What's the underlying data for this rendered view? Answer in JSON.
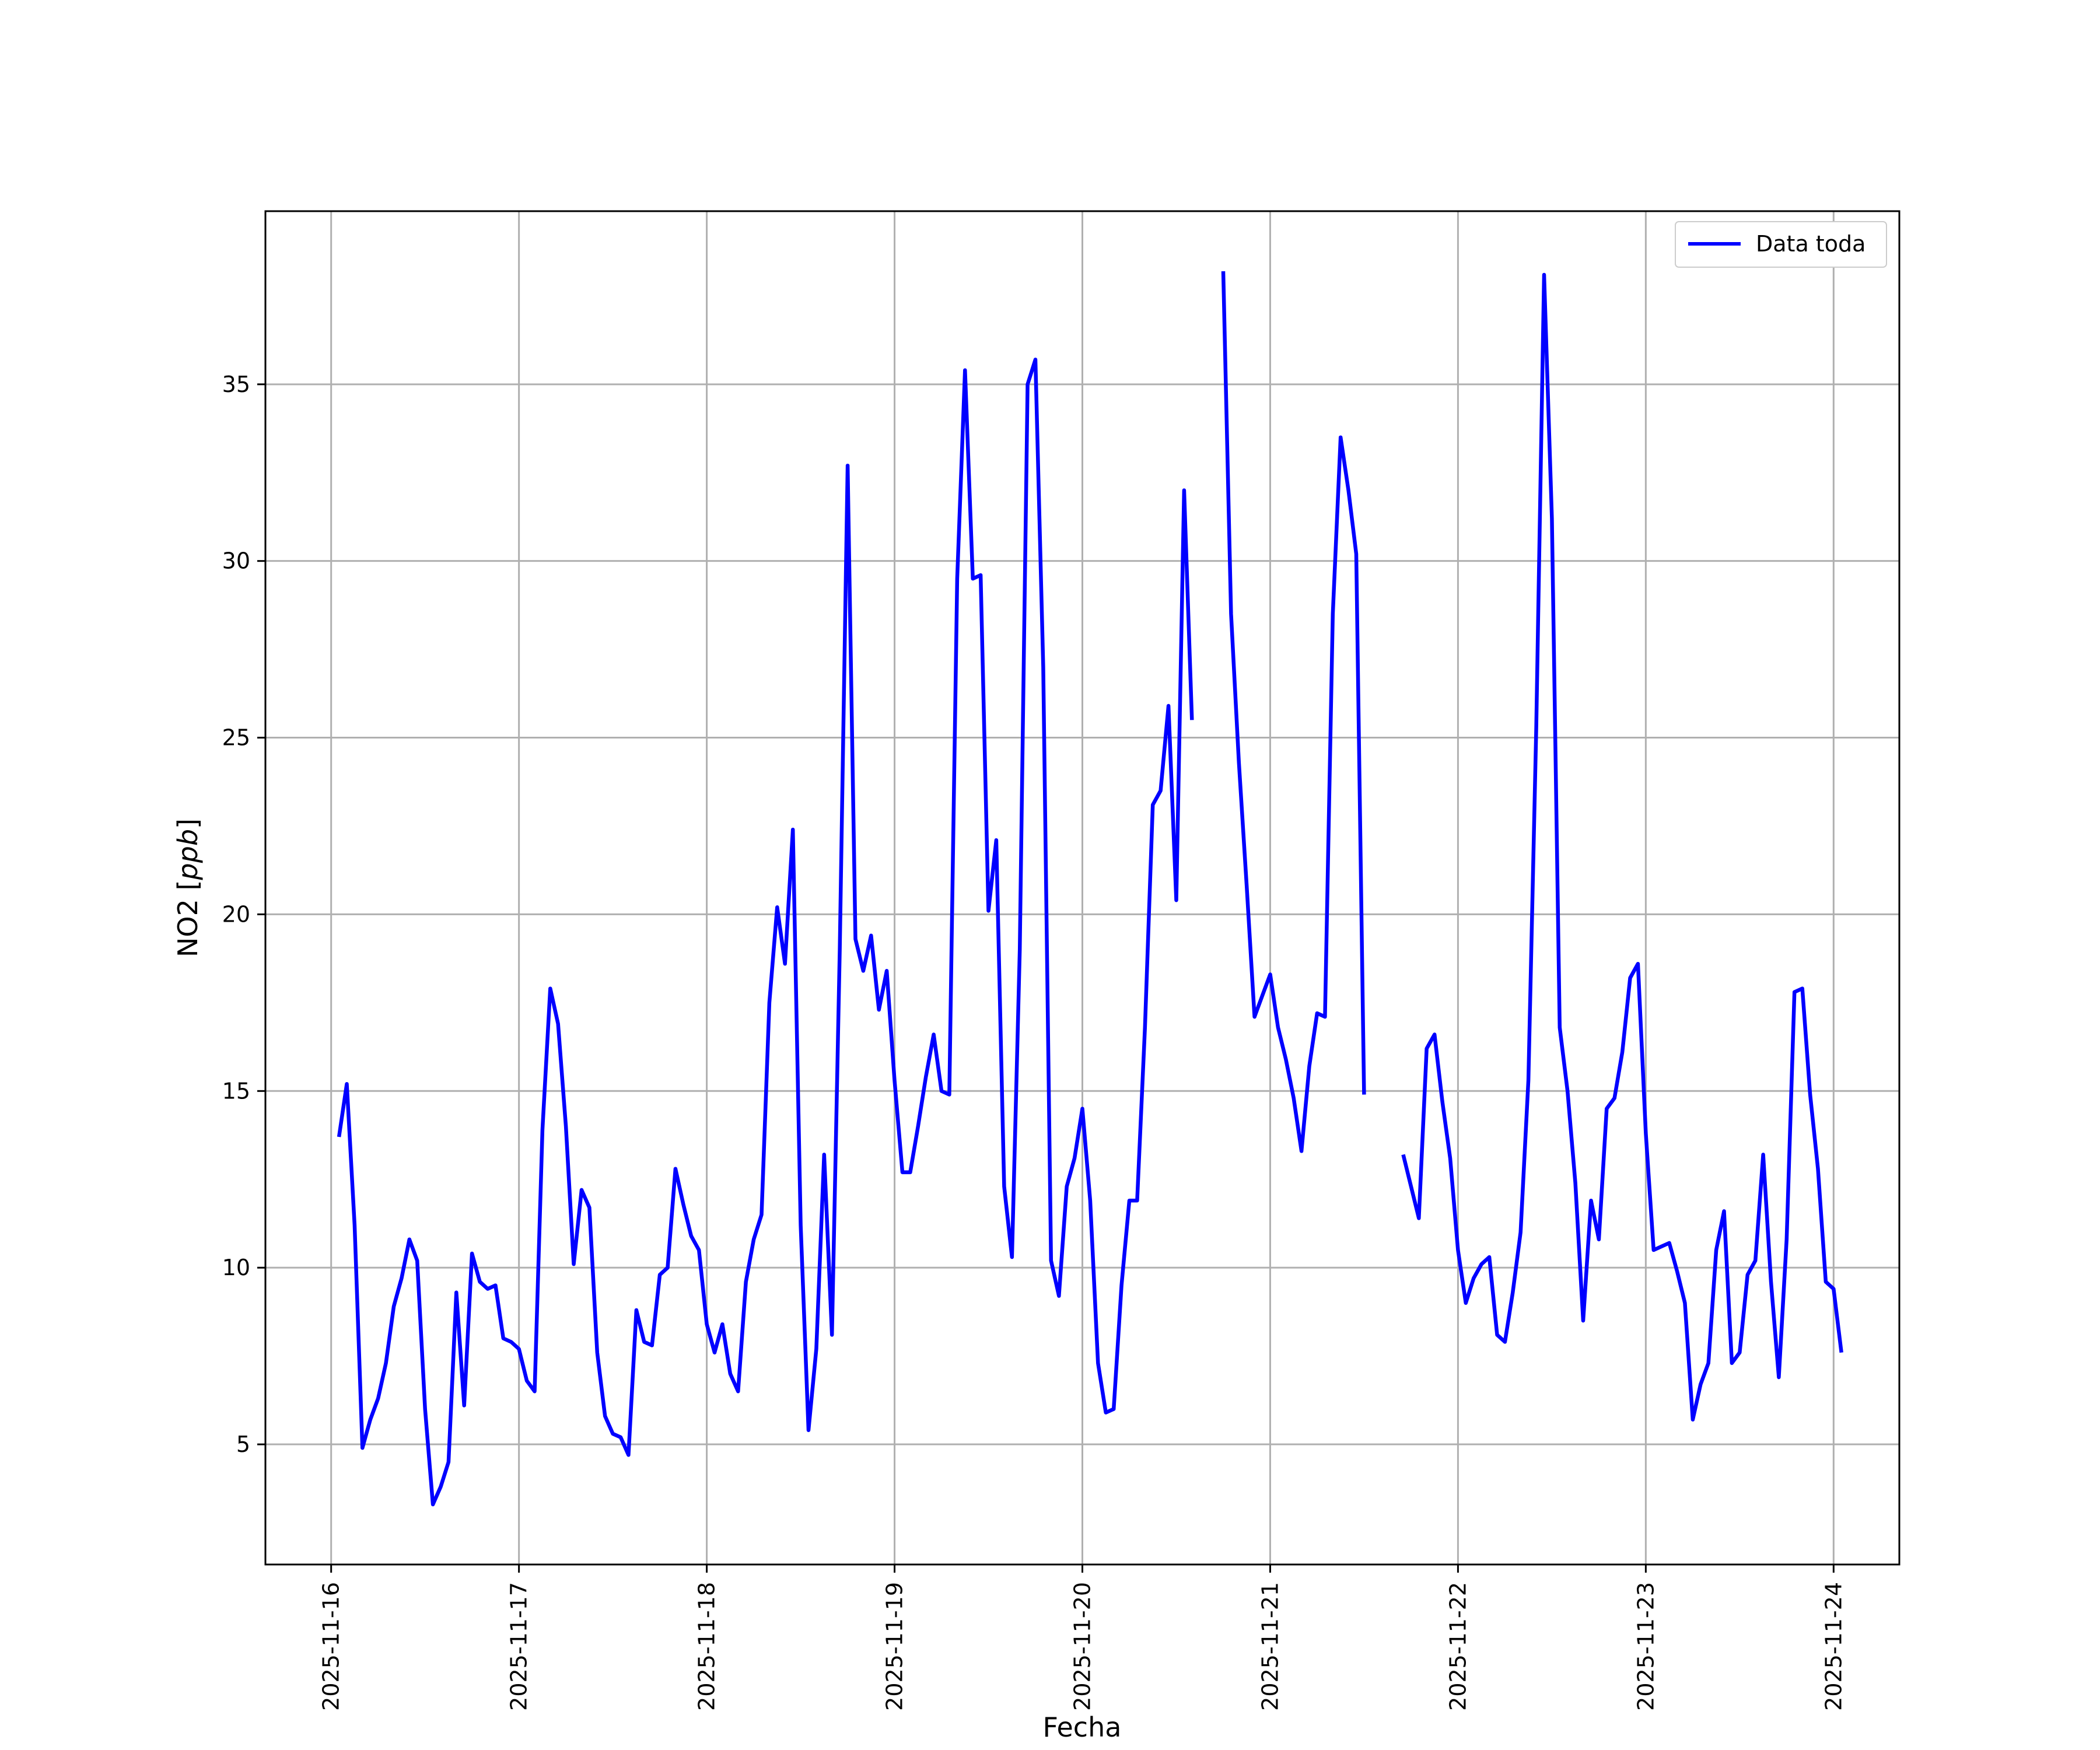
{
  "chart_data": {
    "type": "line",
    "title": "",
    "xlabel": "Fecha",
    "ylabel": "NO2 [ppb]",
    "ylabel_parts": {
      "prefix": "NO2 [",
      "italic": "ppb",
      "suffix": "]"
    },
    "x_axis_type": "date",
    "xlim": [
      "2025-11-15T15:36",
      "2025-11-24T08:24"
    ],
    "ylim": [
      1.6,
      39.9
    ],
    "x_ticks": [
      "2025-11-16",
      "2025-11-17",
      "2025-11-18",
      "2025-11-19",
      "2025-11-20",
      "2025-11-21",
      "2025-11-22",
      "2025-11-23",
      "2025-11-24"
    ],
    "y_ticks": [
      5,
      10,
      15,
      20,
      25,
      30,
      35
    ],
    "grid": true,
    "legend": {
      "placement": "top-right",
      "entries": [
        "Data toda"
      ]
    },
    "series": [
      {
        "name": "Data toda",
        "color": "#0000ff",
        "step_hours": 1,
        "segments": [
          {
            "start": "2025-11-16T01:00",
            "values": [
              13.7,
              15.2,
              11.2,
              4.9,
              5.7,
              6.3,
              7.3,
              8.9,
              9.7,
              10.8,
              10.2,
              6.0,
              3.3,
              3.8,
              4.5,
              9.3,
              6.1,
              10.4,
              9.6,
              9.4,
              9.5,
              8.0,
              7.9,
              7.7,
              6.8,
              6.5,
              13.9,
              17.9,
              16.9,
              14.0,
              10.1,
              12.2,
              11.7,
              7.6,
              5.8,
              5.3,
              5.2,
              4.7,
              8.8,
              7.9,
              7.8,
              9.8,
              10.0,
              12.8,
              11.8,
              10.9,
              10.5,
              8.4,
              7.6,
              8.4,
              7.0,
              6.5,
              9.6,
              10.8,
              11.5,
              17.5,
              20.2,
              18.6,
              22.4,
              11.2,
              5.4,
              7.7,
              13.2,
              8.1,
              19.0,
              32.7,
              19.3,
              18.4,
              19.4,
              17.3,
              18.4,
              15.3,
              12.7,
              12.7,
              14.0,
              15.4,
              16.6,
              15.0,
              14.9,
              29.5,
              35.4,
              29.5,
              29.6,
              20.1,
              22.1,
              12.3,
              10.3,
              19.0,
              35.0,
              35.7,
              27.0,
              10.2,
              9.2,
              12.3,
              13.1,
              14.5,
              11.9,
              7.3,
              5.9,
              6.0,
              9.5,
              11.9,
              11.9,
              16.8,
              23.1,
              23.5,
              25.9,
              20.4,
              32.0,
              25.5
            ]
          },
          {
            "start": "2025-11-20T18:00",
            "values": [
              38.2,
              28.5,
              24.3,
              20.8,
              17.1,
              17.7,
              18.3,
              16.8,
              15.9,
              14.8,
              13.3,
              15.7,
              17.2,
              17.1,
              28.5,
              33.5,
              32.0,
              30.2,
              14.9
            ]
          },
          {
            "start": "2025-11-21T17:00",
            "values": [
              13.2,
              12.3,
              11.4,
              16.2,
              16.6,
              14.7,
              13.1,
              10.5,
              9.0,
              9.7,
              10.1,
              10.3,
              8.1,
              7.9,
              9.3,
              11.0,
              15.3,
              25.3,
              38.1,
              31.2,
              16.8,
              15.0,
              12.4,
              8.5,
              11.9,
              10.8,
              14.5,
              14.8,
              16.1,
              18.2,
              18.6,
              13.8,
              10.5,
              10.6,
              10.7,
              9.9,
              9.0,
              5.7,
              6.7,
              7.3,
              10.5,
              11.6,
              7.3,
              7.6,
              9.8,
              10.2,
              13.2,
              9.6,
              6.9,
              10.8,
              17.8,
              17.9,
              14.9,
              12.8,
              9.6,
              9.4,
              7.6
            ]
          }
        ]
      }
    ]
  }
}
